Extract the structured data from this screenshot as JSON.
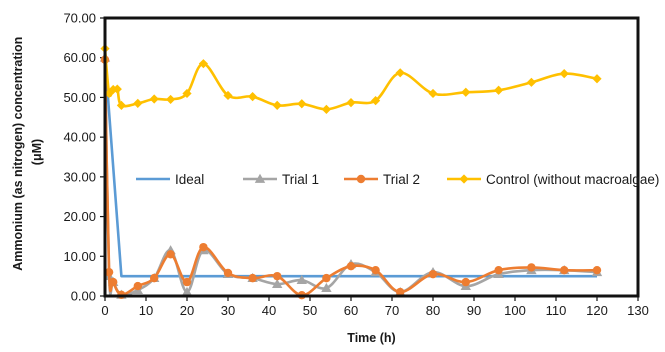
{
  "chart_data": {
    "type": "line",
    "xlabel": "Time (h)",
    "ylabel_line1": "Ammonium (as nitrogen) concentration",
    "ylabel_line2": "(μM)",
    "xlim": [
      0,
      130
    ],
    "ylim": [
      0,
      70
    ],
    "x_ticks": [
      "0",
      "10",
      "20",
      "30",
      "40",
      "50",
      "60",
      "70",
      "80",
      "90",
      "100",
      "110",
      "120",
      "130"
    ],
    "y_ticks": [
      "0.00",
      "10.00",
      "20.00",
      "30.00",
      "40.00",
      "50.00",
      "60.00",
      "70.00"
    ],
    "grid": false,
    "legend_position": "center-right",
    "series": [
      {
        "name": "Ideal",
        "color": "#5b9bd5",
        "marker": "none",
        "smooth": false,
        "points": [
          [
            0,
            60
          ],
          [
            4,
            5
          ],
          [
            120,
            5
          ]
        ]
      },
      {
        "name": "Trial 1",
        "color": "#a5a5a5",
        "marker": "triangle",
        "smooth": true,
        "points": [
          [
            0,
            60
          ],
          [
            1,
            5
          ],
          [
            2,
            3.5
          ],
          [
            4,
            0.3
          ],
          [
            8,
            1.5
          ],
          [
            12,
            4.5
          ],
          [
            16,
            11.5
          ],
          [
            20,
            1
          ],
          [
            24,
            11.5
          ],
          [
            30,
            5.5
          ],
          [
            36,
            4.5
          ],
          [
            42,
            3
          ],
          [
            48,
            4
          ],
          [
            54,
            2
          ],
          [
            60,
            8
          ],
          [
            66,
            6
          ],
          [
            72,
            1
          ],
          [
            80,
            6
          ],
          [
            88,
            2.5
          ],
          [
            96,
            5.5
          ],
          [
            104,
            6.5
          ],
          [
            112,
            6.5
          ],
          [
            120,
            6
          ]
        ]
      },
      {
        "name": "Trial 2",
        "color": "#ed7d31",
        "marker": "circle",
        "smooth": true,
        "points": [
          [
            0,
            59.5
          ],
          [
            1,
            6
          ],
          [
            2,
            3.5
          ],
          [
            4,
            0.3
          ],
          [
            8,
            2.5
          ],
          [
            12,
            4.5
          ],
          [
            16,
            10.5
          ],
          [
            20,
            3.5
          ],
          [
            24,
            12.3
          ],
          [
            30,
            5.8
          ],
          [
            36,
            4.5
          ],
          [
            42,
            5
          ],
          [
            48,
            0.2
          ],
          [
            54,
            4.5
          ],
          [
            60,
            7.5
          ],
          [
            66,
            6.5
          ],
          [
            72,
            1
          ],
          [
            80,
            5.5
          ],
          [
            88,
            3.5
          ],
          [
            96,
            6.5
          ],
          [
            104,
            7.2
          ],
          [
            112,
            6.5
          ],
          [
            120,
            6.5
          ]
        ]
      },
      {
        "name": "Control (without macroalgae)",
        "color": "#ffc000",
        "marker": "diamond",
        "smooth": true,
        "points": [
          [
            0,
            62.3
          ],
          [
            1,
            51
          ],
          [
            2,
            52
          ],
          [
            3,
            52.1
          ],
          [
            4,
            48
          ],
          [
            8,
            48.5
          ],
          [
            12,
            49.6
          ],
          [
            16,
            49.5
          ],
          [
            20,
            51
          ],
          [
            24,
            58.5
          ],
          [
            30,
            50.5
          ],
          [
            36,
            50.2
          ],
          [
            42,
            48
          ],
          [
            48,
            48.4
          ],
          [
            54,
            47
          ],
          [
            60,
            48.7
          ],
          [
            66,
            49.2
          ],
          [
            72,
            56.2
          ],
          [
            80,
            51
          ],
          [
            88,
            51.3
          ],
          [
            96,
            51.8
          ],
          [
            104,
            53.8
          ],
          [
            112,
            56
          ],
          [
            120,
            54.7
          ]
        ]
      }
    ]
  }
}
